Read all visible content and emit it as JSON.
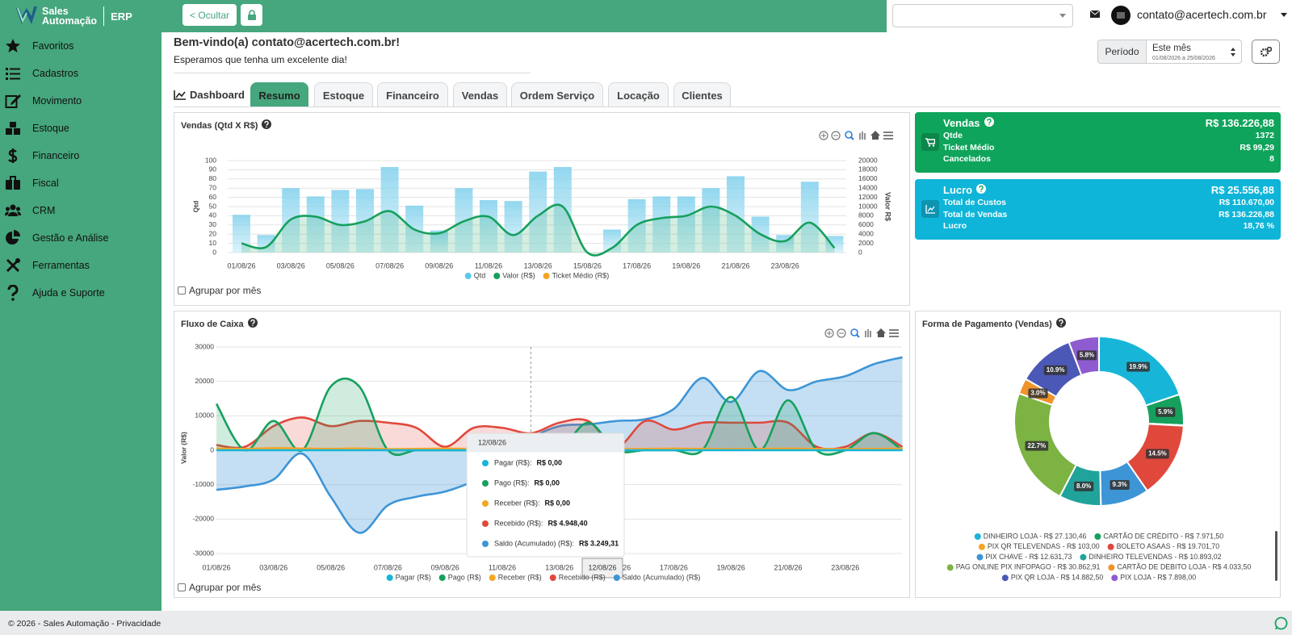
{
  "brand": {
    "line1": "Sales",
    "line2": "Automação",
    "suffix": "ERP"
  },
  "menu": [
    "Favoritos",
    "Cadastros",
    "Movimento",
    "Estoque",
    "Financeiro",
    "Fiscal",
    "CRM",
    "Gestão e Análise",
    "Ferramentas",
    "Ajuda e Suporte"
  ],
  "topbar": {
    "hide_button": "< Ocultar",
    "user": "contato@acertech.com.br"
  },
  "welcome": {
    "title": "Bem-vindo(a) contato@acertech.com.br!",
    "subtitle": "Esperamos que tenha um excelente dia!"
  },
  "period": {
    "label": "Período",
    "value": "Este mês",
    "range": "01/08/2026 a 25/08/2026"
  },
  "tabs": {
    "title": "Dashboard",
    "items": [
      "Resumo",
      "Estoque",
      "Financeiro",
      "Vendas",
      "Ordem Serviço",
      "Locação",
      "Clientes"
    ],
    "active": 0
  },
  "sales_chart": {
    "type": "combo",
    "title": "Vendas (Qtd X R$)",
    "ylabel": "Qtd",
    "y2label": "Valor R$",
    "categories": [
      "01/08/26",
      null,
      "03/08/26",
      null,
      "05/08/26",
      null,
      "07/08/26",
      null,
      "09/08/26",
      null,
      "11/08/26",
      null,
      "13/08/26",
      null,
      "15/08/26",
      null,
      "17/08/26",
      null,
      "19/08/26",
      null,
      "21/08/26",
      null,
      "23/08/26",
      null,
      null
    ],
    "ylim": [
      0,
      100
    ],
    "yticks": [
      0,
      10,
      20,
      30,
      40,
      50,
      60,
      70,
      80,
      90,
      100
    ],
    "y2lim": [
      0,
      20000
    ],
    "y2ticks": [
      0,
      2000,
      4000,
      6000,
      8000,
      10000,
      12000,
      14000,
      16000,
      18000,
      20000
    ],
    "grid": true,
    "series": [
      {
        "name": "Qtd",
        "type": "bar",
        "color": "#5bc8e8",
        "values": [
          41,
          19,
          70,
          61,
          68,
          69,
          93,
          51,
          24,
          70,
          57,
          56,
          88,
          93,
          0,
          25,
          58,
          61,
          61,
          70,
          83,
          39,
          19,
          77,
          18
        ]
      },
      {
        "name": "Valor (R$)",
        "type": "line",
        "axis": "y2",
        "color": "#16a05d",
        "values": [
          2000,
          1200,
          7200,
          7800,
          6000,
          6800,
          9000,
          5000,
          4200,
          6800,
          7800,
          3800,
          8000,
          10000,
          0,
          1000,
          6000,
          7500,
          8000,
          10000,
          8000,
          4000,
          2500,
          6500,
          1000
        ]
      },
      {
        "name": "Ticket Médio (R$)",
        "type": "line",
        "axis": "y2",
        "color": "#f5a524"
      }
    ],
    "checkbox": "Agrupar por mês"
  },
  "cashflow_chart": {
    "type": "area",
    "title": "Fluxo de Caixa",
    "ylabel": "Valor (R$)",
    "categories": [
      "01/08/26",
      null,
      "03/08/26",
      null,
      "05/08/26",
      null,
      "07/08/26",
      null,
      "09/08/26",
      null,
      "11/08/26",
      null,
      "13/08/26",
      null,
      "15/08/26",
      null,
      "17/08/26",
      null,
      "19/08/26",
      null,
      "21/08/26",
      null,
      "23/08/26",
      null,
      null
    ],
    "ylim": [
      -30000,
      30000
    ],
    "yticks": [
      -30000,
      -20000,
      -10000,
      0,
      10000,
      20000,
      30000
    ],
    "grid": true,
    "series": [
      {
        "name": "Pagar (R$)",
        "color": "#17b6d8",
        "values": [
          0,
          0,
          0,
          0,
          0,
          0,
          0,
          0,
          0,
          0,
          0,
          0,
          0,
          0,
          0,
          0,
          0,
          0,
          0,
          0,
          0,
          0,
          0,
          0,
          0
        ]
      },
      {
        "name": "Pago (R$)",
        "color": "#16a05d",
        "values": [
          13500,
          0,
          8500,
          0,
          18500,
          18500,
          0,
          0,
          0,
          0,
          0,
          0,
          0,
          8000,
          0,
          0,
          0,
          0,
          15500,
          0,
          14500,
          0,
          0,
          5000,
          0
        ]
      },
      {
        "name": "Receber (R$)",
        "color": "#f5a524",
        "values": [
          500,
          400,
          600,
          500,
          400,
          500,
          300,
          400,
          500,
          400,
          300,
          0,
          400,
          500,
          300,
          400,
          500,
          400,
          300,
          400,
          500,
          400,
          300,
          400,
          500
        ]
      },
      {
        "name": "Recebido (R$)",
        "color": "#e0483c",
        "values": [
          1500,
          1000,
          7000,
          9500,
          7000,
          8500,
          8000,
          6500,
          1000,
          6500,
          6500,
          4948.4,
          8000,
          8500,
          1000,
          8500,
          6000,
          8000,
          8000,
          8000,
          8000,
          1000,
          1000,
          5000,
          1000
        ]
      },
      {
        "name": "Saldo (Acumulado) (R$)",
        "color": "#3d95d6",
        "values": [
          -11500,
          -10500,
          -8500,
          -1000,
          -13500,
          -24000,
          -16000,
          -13500,
          -12000,
          -9000,
          -5000,
          3249.31,
          7000,
          7500,
          8500,
          9000,
          12000,
          21000,
          14000,
          23000,
          17500,
          20000,
          21500,
          25000,
          27000
        ]
      }
    ],
    "tooltip": {
      "title": "12/08/26",
      "items": [
        {
          "name": "Pagar (R$):",
          "value": "R$ 0,00"
        },
        {
          "name": "Pago (R$):",
          "value": "R$ 0,00"
        },
        {
          "name": "Receber (R$):",
          "value": "R$ 0,00"
        },
        {
          "name": "Recebido (R$):",
          "value": "R$ 4.948,40"
        },
        {
          "name": "Saldo (Acumulado) (R$):",
          "value": "R$ 3.249,31"
        }
      ]
    },
    "checkbox": "Agrupar por mês"
  },
  "payment_chart": {
    "type": "donut",
    "title": "Forma de Pagamento (Vendas)",
    "categories": [
      "DINHEIRO LOJA - R$ 27.130,46",
      "CARTÃO DE CRÉDITO - R$ 7.971,50",
      "PIX QR TELEVENDAS - R$ 103,00",
      "BOLETO ASAAS - R$ 19.701,70",
      "PIX CHAVE - R$ 12.631,73",
      "DINHEIRO TELEVENDAS - R$ 10.893,02",
      "PAG ONLINE PIX INFOPAGO - R$ 30.862,91",
      "CARTÃO DE DEBITO LOJA - R$ 4.033,50",
      "PIX QR LOJA - R$ 14.882,50",
      "PIX LOJA - R$ 7.898,00"
    ],
    "values": [
      19.9,
      5.9,
      0.1,
      14.5,
      9.3,
      8.0,
      22.7,
      3.0,
      10.9,
      5.8
    ],
    "value_labels": [
      "19.9%",
      "5.9%",
      null,
      "14.5%",
      "9.3%",
      "8.0%",
      "22.7%",
      "3.0%",
      "10.9%",
      "5.8%"
    ],
    "colors": [
      "#17b6d8",
      "#16a05d",
      "#f5a524",
      "#e0483c",
      "#3d95d6",
      "#20a39a",
      "#7cb342",
      "#f0932b",
      "#4b58b5",
      "#8e5bd0"
    ]
  },
  "sales_card": {
    "title": "Vendas",
    "total": "R$ 136.226,88",
    "rows": [
      [
        "Qtde",
        "1372"
      ],
      [
        "Ticket Médio",
        "R$ 99,29"
      ],
      [
        "Cancelados",
        "8"
      ]
    ]
  },
  "profit_card": {
    "title": "Lucro",
    "total": "R$ 25.556,88",
    "rows": [
      [
        "Total de Custos",
        "R$ 110.670,00"
      ],
      [
        "Total de Vendas",
        "R$ 136.226,88"
      ],
      [
        "Lucro",
        "18,76 %"
      ]
    ]
  },
  "footer": "© 2026 - Sales Automação - Privacidade"
}
